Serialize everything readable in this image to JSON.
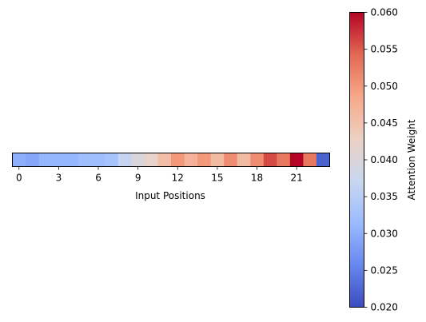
{
  "chart_data": {
    "type": "heatmap",
    "title": "",
    "xlabel": "Input Positions",
    "ylabel": "",
    "x_ticks": [
      0,
      3,
      6,
      9,
      12,
      15,
      18,
      21
    ],
    "values": [
      0.03,
      0.029,
      0.031,
      0.031,
      0.031,
      0.032,
      0.032,
      0.033,
      0.0365,
      0.0395,
      0.042,
      0.0455,
      0.05,
      0.047,
      0.05,
      0.046,
      0.051,
      0.046,
      0.051,
      0.056,
      0.053,
      0.06,
      0.053,
      0.022
    ],
    "colormap": "coolwarm",
    "colormap_stops": [
      "#3b4cc0",
      "#6788ee",
      "#9abbff",
      "#c9d7f0",
      "#edd1c2",
      "#f7a889",
      "#e26952",
      "#b40426"
    ],
    "colorbar": {
      "label": "Attention Weight",
      "min": 0.02,
      "max": 0.06,
      "ticks": [
        "0.020",
        "0.025",
        "0.030",
        "0.035",
        "0.040",
        "0.045",
        "0.050",
        "0.055",
        "0.060"
      ]
    },
    "grid": false
  }
}
